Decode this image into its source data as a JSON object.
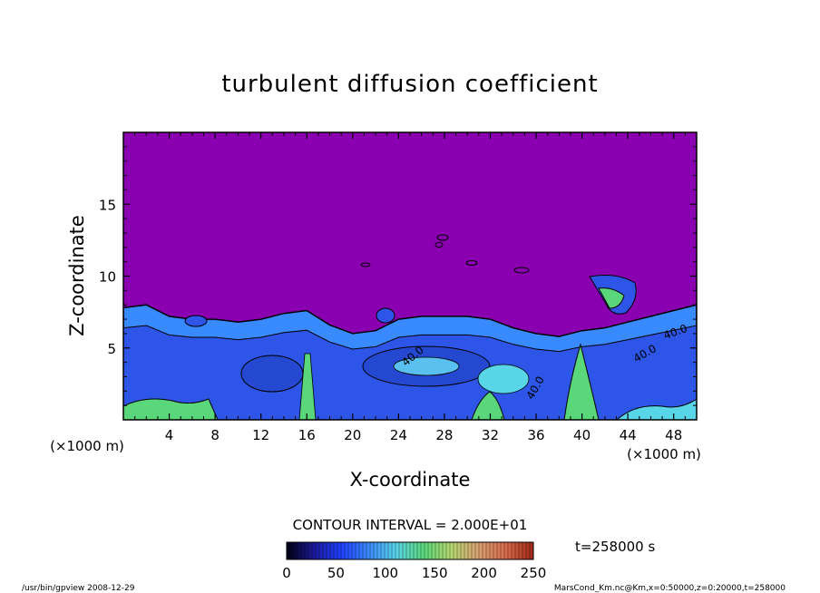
{
  "chart_data": {
    "type": "heatmap",
    "title": "turbulent diffusion coefficient",
    "xlabel": "X-coordinate",
    "ylabel": "Z-coordinate",
    "x_unit": "(×1000 m)",
    "z_unit": "(×1000 m)",
    "xlim": [
      0,
      50
    ],
    "ylim": [
      0,
      20
    ],
    "x_ticks": [
      4,
      8,
      12,
      16,
      20,
      24,
      28,
      32,
      36,
      40,
      44,
      48
    ],
    "y_ticks": [
      5,
      10,
      15
    ],
    "contour_interval_text": "CONTOUR INTERVAL = 2.000E+01",
    "contour_labels": [
      "40.0",
      "40.0",
      "40.0",
      "40.0"
    ],
    "colorbar": {
      "min": 0,
      "max": 250,
      "ticks": [
        0,
        50,
        100,
        150,
        200,
        250
      ],
      "colors": [
        "#000010",
        "#1a1a9a",
        "#2040ff",
        "#3a8aff",
        "#59d5e8",
        "#5ad77a",
        "#b6d870",
        "#d8a070",
        "#d86a4a",
        "#a02818"
      ]
    },
    "time_label": "t=258000 s",
    "footer_left": "/usr/bin/gpview   2008-12-29",
    "footer_right": "MarsCond_Km.nc@Km,x=0:50000,z=0:20000,t=258000",
    "boundary_profile": [
      [
        0,
        7.8
      ],
      [
        2,
        8.0
      ],
      [
        4,
        7.2
      ],
      [
        6,
        7.0
      ],
      [
        8,
        7.0
      ],
      [
        10,
        6.8
      ],
      [
        12,
        7.0
      ],
      [
        14,
        7.4
      ],
      [
        16,
        7.6
      ],
      [
        18,
        6.6
      ],
      [
        20,
        6.0
      ],
      [
        22,
        6.2
      ],
      [
        24,
        7.0
      ],
      [
        26,
        7.2
      ],
      [
        28,
        7.2
      ],
      [
        30,
        7.2
      ],
      [
        32,
        7.0
      ],
      [
        34,
        6.4
      ],
      [
        36,
        6.0
      ],
      [
        38,
        5.8
      ],
      [
        40,
        6.2
      ],
      [
        42,
        6.4
      ],
      [
        44,
        6.8
      ],
      [
        46,
        7.2
      ],
      [
        48,
        7.6
      ],
      [
        50,
        8.0
      ]
    ]
  },
  "colors": {
    "background_field": "#8a00b0",
    "low_field": "#2d55e8",
    "mid_field": "#3aa4ee",
    "high_field": "#5ad77a"
  }
}
